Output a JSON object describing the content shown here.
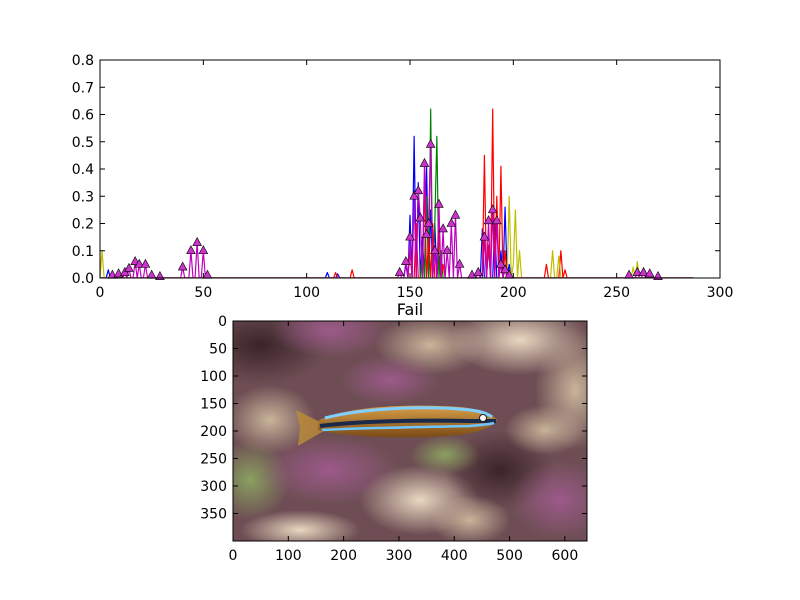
{
  "chart_data": [
    {
      "type": "line",
      "title": "",
      "xlabel": "",
      "ylabel": "",
      "xlim": [
        0,
        300
      ],
      "ylim": [
        0,
        0.8
      ],
      "xticks": [
        "0",
        "50",
        "100",
        "150",
        "200",
        "250",
        "300"
      ],
      "yticks": [
        "0.0",
        "0.1",
        "0.2",
        "0.3",
        "0.4",
        "0.5",
        "0.6",
        "0.7",
        "0.8"
      ],
      "grid": false,
      "x_extent": [
        0,
        287
      ],
      "series": [
        {
          "color": "#0000ff",
          "peaks": [
            [
              4,
              0.03
            ],
            [
              110,
              0.02
            ],
            [
              115,
              0.015
            ],
            [
              148,
              0.05
            ],
            [
              150,
              0.23
            ],
            [
              152,
              0.52
            ],
            [
              154,
              0.35
            ],
            [
              156,
              0.15
            ],
            [
              158,
              0.42
            ],
            [
              160,
              0.25
            ],
            [
              162,
              0.2
            ],
            [
              164,
              0.08
            ],
            [
              185,
              0.18
            ],
            [
              188,
              0.12
            ],
            [
              191,
              0.2
            ],
            [
              194,
              0.1
            ],
            [
              196,
              0.26
            ],
            [
              198,
              0.05
            ]
          ]
        },
        {
          "color": "#008000",
          "peaks": [
            [
              156,
              0.1
            ],
            [
              158,
              0.3
            ],
            [
              160,
              0.62
            ],
            [
              162,
              0.2
            ],
            [
              163,
              0.52
            ],
            [
              165,
              0.1
            ]
          ]
        },
        {
          "color": "#ff0000",
          "peaks": [
            [
              114,
              0.02
            ],
            [
              122,
              0.03
            ],
            [
              150,
              0.1
            ],
            [
              153,
              0.2
            ],
            [
              157,
              0.35
            ],
            [
              159,
              0.15
            ],
            [
              161,
              0.2
            ],
            [
              164,
              0.18
            ],
            [
              166,
              0.05
            ],
            [
              186,
              0.45
            ],
            [
              188,
              0.12
            ],
            [
              190,
              0.62
            ],
            [
              192,
              0.3
            ],
            [
              194,
              0.41
            ],
            [
              196,
              0.1
            ],
            [
              216,
              0.05
            ],
            [
              223,
              0.1
            ],
            [
              225,
              0.03
            ]
          ]
        },
        {
          "color": "#bfbf00",
          "peaks": [
            [
              1,
              0.1
            ],
            [
              198,
              0.3
            ],
            [
              200,
              0.05
            ],
            [
              201,
              0.25
            ],
            [
              203,
              0.1
            ],
            [
              219,
              0.1
            ],
            [
              222,
              0.08
            ],
            [
              258,
              0.04
            ],
            [
              260,
              0.06
            ]
          ]
        },
        {
          "color": "#c000c0",
          "marker": "triangle",
          "marker_fill": "#cc33cc",
          "peaks": [
            [
              6,
              0.01
            ],
            [
              9,
              0.015
            ],
            [
              12,
              0.02
            ],
            [
              14,
              0.035
            ],
            [
              17,
              0.06
            ],
            [
              19,
              0.05
            ],
            [
              22,
              0.05
            ],
            [
              25,
              0.01
            ],
            [
              29,
              0.005
            ],
            [
              40,
              0.04
            ],
            [
              44,
              0.1
            ],
            [
              47,
              0.13
            ],
            [
              50,
              0.1
            ],
            [
              52,
              0.01
            ],
            [
              145,
              0.02
            ],
            [
              148,
              0.06
            ],
            [
              150,
              0.15
            ],
            [
              152,
              0.3
            ],
            [
              154,
              0.32
            ],
            [
              155,
              0.22
            ],
            [
              157,
              0.42
            ],
            [
              158,
              0.16
            ],
            [
              159,
              0.2
            ],
            [
              160,
              0.49
            ],
            [
              162,
              0.1
            ],
            [
              164,
              0.27
            ],
            [
              166,
              0.18
            ],
            [
              168,
              0.1
            ],
            [
              170,
              0.2
            ],
            [
              172,
              0.23
            ],
            [
              174,
              0.05
            ],
            [
              180,
              0.01
            ],
            [
              183,
              0.02
            ],
            [
              186,
              0.15
            ],
            [
              188,
              0.21
            ],
            [
              190,
              0.25
            ],
            [
              192,
              0.21
            ],
            [
              194,
              0.05
            ],
            [
              196,
              0.03
            ],
            [
              198,
              0.01
            ],
            [
              256,
              0.01
            ],
            [
              260,
              0.02
            ],
            [
              263,
              0.02
            ],
            [
              266,
              0.015
            ],
            [
              270,
              0.005
            ]
          ]
        }
      ]
    },
    {
      "type": "image",
      "title": "Fail",
      "xlim": [
        0,
        640
      ],
      "ylim": [
        0,
        400
      ],
      "xticks": [
        "0",
        "100",
        "200",
        "300",
        "400",
        "500",
        "600"
      ],
      "yticks": [
        "0",
        "50",
        "100",
        "150",
        "200",
        "250",
        "300",
        "350"
      ],
      "image_content": "blue-striped fish (blenny) over pink and purple coral rubble",
      "colors": {
        "background": "#7a5a5e",
        "fish_body": "#b07a2a",
        "fish_stripe": "#66c8ff"
      }
    }
  ]
}
